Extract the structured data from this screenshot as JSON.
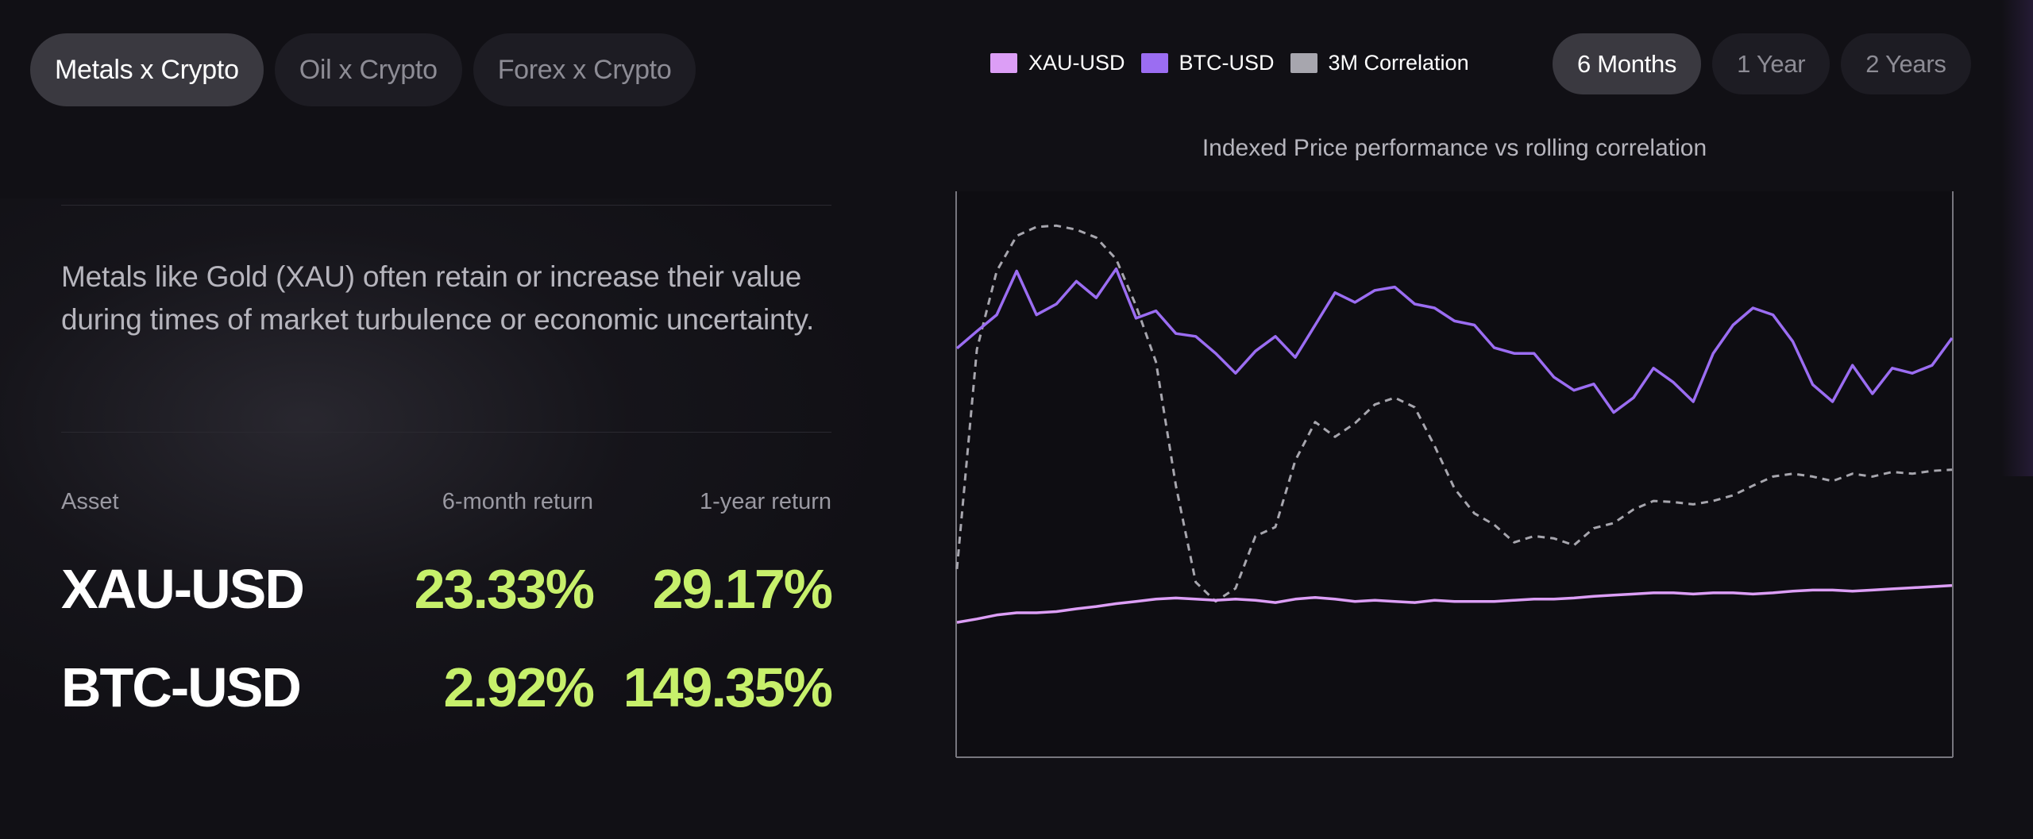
{
  "category_tabs": [
    {
      "label": "Metals x Crypto",
      "active": true
    },
    {
      "label": "Oil x Crypto",
      "active": false
    },
    {
      "label": "Forex x Crypto",
      "active": false
    }
  ],
  "legend": [
    {
      "label": "XAU-USD",
      "color": "#dc9ef6"
    },
    {
      "label": "BTC-USD",
      "color": "#9b6df2"
    },
    {
      "label": "3M Correlation",
      "color": "#a7a6ae"
    }
  ],
  "period_tabs": [
    {
      "label": "6 Months",
      "active": true
    },
    {
      "label": "1 Year",
      "active": false
    },
    {
      "label": "2 Years",
      "active": false
    }
  ],
  "description": "Metals like Gold (XAU) often retain or increase their value during times of market turbulence or economic uncertainty.",
  "returns_table": {
    "headers": [
      "Asset",
      "6-month return",
      "1-year return"
    ],
    "rows": [
      {
        "asset": "XAU-USD",
        "six_month": "23.33%",
        "one_year": "29.17%"
      },
      {
        "asset": "BTC-USD",
        "six_month": "2.92%",
        "one_year": "149.35%"
      }
    ]
  },
  "chart_data": {
    "type": "line",
    "title": "Indexed Price performance vs rolling correlation",
    "xlabel": "",
    "ylabel": "",
    "grid": false,
    "ylim": [
      0,
      100
    ],
    "x": [
      0,
      2,
      4,
      6,
      8,
      10,
      12,
      14,
      16,
      18,
      20,
      22,
      24,
      26,
      28,
      30,
      32,
      34,
      36,
      38,
      40,
      42,
      44,
      46,
      48,
      50,
      52,
      54,
      56,
      58,
      60,
      62,
      64,
      66,
      68,
      70,
      72,
      74,
      76,
      78,
      80,
      82,
      84,
      86,
      88,
      90,
      92,
      94,
      96,
      98,
      100
    ],
    "series": [
      {
        "name": "XAU-USD",
        "color": "#dc9ef6",
        "dashed": false,
        "values": [
          23.9,
          24.5,
          25.2,
          25.6,
          25.6,
          25.8,
          26.3,
          26.7,
          27.2,
          27.6,
          28.0,
          28.2,
          28.0,
          27.8,
          28.0,
          27.8,
          27.4,
          28.0,
          28.3,
          28.0,
          27.6,
          27.8,
          27.6,
          27.4,
          27.8,
          27.6,
          27.6,
          27.6,
          27.8,
          28.0,
          28.0,
          28.2,
          28.5,
          28.7,
          28.9,
          29.1,
          29.1,
          28.9,
          29.1,
          29.1,
          28.9,
          29.1,
          29.4,
          29.6,
          29.6,
          29.4,
          29.6,
          29.8,
          30.0,
          30.2,
          30.4
        ]
      },
      {
        "name": "BTC-USD",
        "color": "#9b6df2",
        "dashed": false,
        "values": [
          72.2,
          75.2,
          78.1,
          85.8,
          78.1,
          80.0,
          84.0,
          81.1,
          86.2,
          77.5,
          78.8,
          74.8,
          74.3,
          71.3,
          67.8,
          71.7,
          74.3,
          70.6,
          76.3,
          82.0,
          80.3,
          82.4,
          83.0,
          80.0,
          79.3,
          77.0,
          76.3,
          72.3,
          71.3,
          71.3,
          67.1,
          64.8,
          65.9,
          60.9,
          63.5,
          68.7,
          66.2,
          62.8,
          71.3,
          76.3,
          79.3,
          78.1,
          73.4,
          65.8,
          62.8,
          69.2,
          64.2,
          68.7,
          67.8,
          69.2,
          74.0
        ]
      },
      {
        "name": "3M Correlation",
        "color": "#a7a6ae",
        "dashed": true,
        "values": [
          33.3,
          72.0,
          85.8,
          92.0,
          93.6,
          93.8,
          93.1,
          91.7,
          87.9,
          79.7,
          69.8,
          48.0,
          31.0,
          27.6,
          29.9,
          39.1,
          40.7,
          52.4,
          59.2,
          56.6,
          59.0,
          62.3,
          63.5,
          61.8,
          55.0,
          47.5,
          43.1,
          41.1,
          38.0,
          39.1,
          38.7,
          37.5,
          40.5,
          41.4,
          43.8,
          45.3,
          45.1,
          44.7,
          45.3,
          46.3,
          48.0,
          49.6,
          50.1,
          49.6,
          48.8,
          50.1,
          49.6,
          50.4,
          50.1,
          50.6,
          50.8
        ]
      }
    ]
  }
}
